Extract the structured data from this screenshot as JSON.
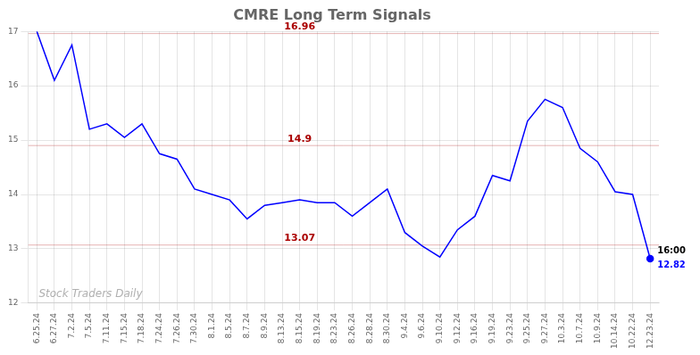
{
  "chart_data": {
    "type": "line",
    "title": "CMRE Long Term Signals",
    "categories": [
      "6.25.24",
      "6.27.24",
      "7.2.24",
      "7.5.24",
      "7.11.24",
      "7.15.24",
      "7.18.24",
      "7.24.24",
      "7.26.24",
      "7.30.24",
      "8.1.24",
      "8.5.24",
      "8.7.24",
      "8.9.24",
      "8.13.24",
      "8.15.24",
      "8.19.24",
      "8.23.24",
      "8.26.24",
      "8.28.24",
      "8.30.24",
      "9.4.24",
      "9.6.24",
      "9.10.24",
      "9.12.24",
      "9.16.24",
      "9.19.24",
      "9.23.24",
      "9.25.24",
      "9.27.24",
      "10.3.24",
      "10.7.24",
      "10.9.24",
      "10.14.24",
      "10.22.24",
      "12.23.24"
    ],
    "series": [
      {
        "name": "CMRE",
        "color": "blue",
        "values": [
          17.0,
          16.1,
          16.75,
          15.2,
          15.3,
          15.05,
          15.3,
          14.75,
          14.65,
          14.1,
          14.0,
          13.9,
          13.55,
          13.8,
          13.85,
          13.9,
          13.85,
          13.85,
          13.6,
          13.85,
          14.1,
          13.3,
          13.05,
          12.85,
          13.35,
          13.6,
          14.35,
          14.25,
          15.35,
          15.75,
          15.6,
          14.85,
          14.6,
          14.05,
          14.0,
          12.82
        ]
      }
    ],
    "hlines": [
      {
        "value": 16.96,
        "label": "16.96",
        "color": "#aa0000"
      },
      {
        "value": 14.9,
        "label": "14.9",
        "color": "#aa0000"
      },
      {
        "value": 13.07,
        "label": "13.07",
        "color": "#aa0000"
      }
    ],
    "end_label": "16:00",
    "watermark": "Stock Traders Daily",
    "ylim": [
      12.0,
      17.0
    ],
    "yticks": [
      12,
      13,
      14,
      15,
      16,
      17
    ],
    "grid": true,
    "legend": false
  }
}
